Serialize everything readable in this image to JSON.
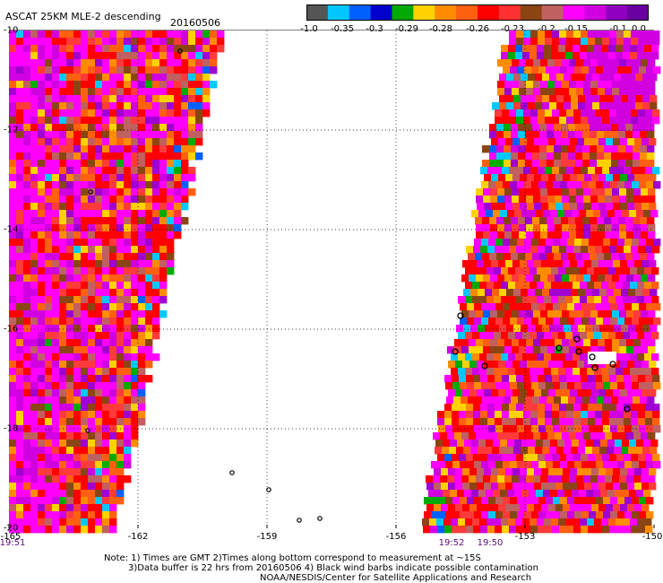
{
  "header": {
    "title": "ASCAT 25KM MLE-2 descending",
    "date": "20160506"
  },
  "colorbar": {
    "colors": [
      "#555555",
      "#00c8ff",
      "#0060ff",
      "#0000cc",
      "#00aa00",
      "#ffd200",
      "#ff8c00",
      "#ff6010",
      "#ff0000",
      "#ff3030",
      "#8b4513",
      "#c06060",
      "#ff00ff",
      "#d000e0",
      "#9000c0",
      "#6a00a0"
    ],
    "labels": [
      "-1.0",
      "-0.35",
      "-0.3",
      "-0.29",
      "-0.28",
      "-0.26",
      "-0.23",
      "-0.2",
      "-0.15",
      "-0.1",
      "0.0"
    ]
  },
  "map": {
    "lon_range": [
      -165,
      -150
    ],
    "lat_range": [
      -20,
      -10
    ],
    "lat_labels": [
      "-10",
      "-12",
      "-14",
      "-16",
      "-18",
      "-20"
    ],
    "lon_labels": [
      "-165",
      "-162",
      "-159",
      "-156",
      "-153",
      "-150"
    ],
    "time_labels": [
      "19:51",
      "19:52",
      "19:50"
    ]
  },
  "notes": {
    "line1": "Note: 1) Times are GMT 2)Times along bottom correspond to measurement at ~15S",
    "line2": "3)Data buffer is 22 hrs from 20160506 4) Black wind barbs indicate possible contamination",
    "line3": "NOAA/NESDIS/Center for Satellite Applications and Research"
  }
}
